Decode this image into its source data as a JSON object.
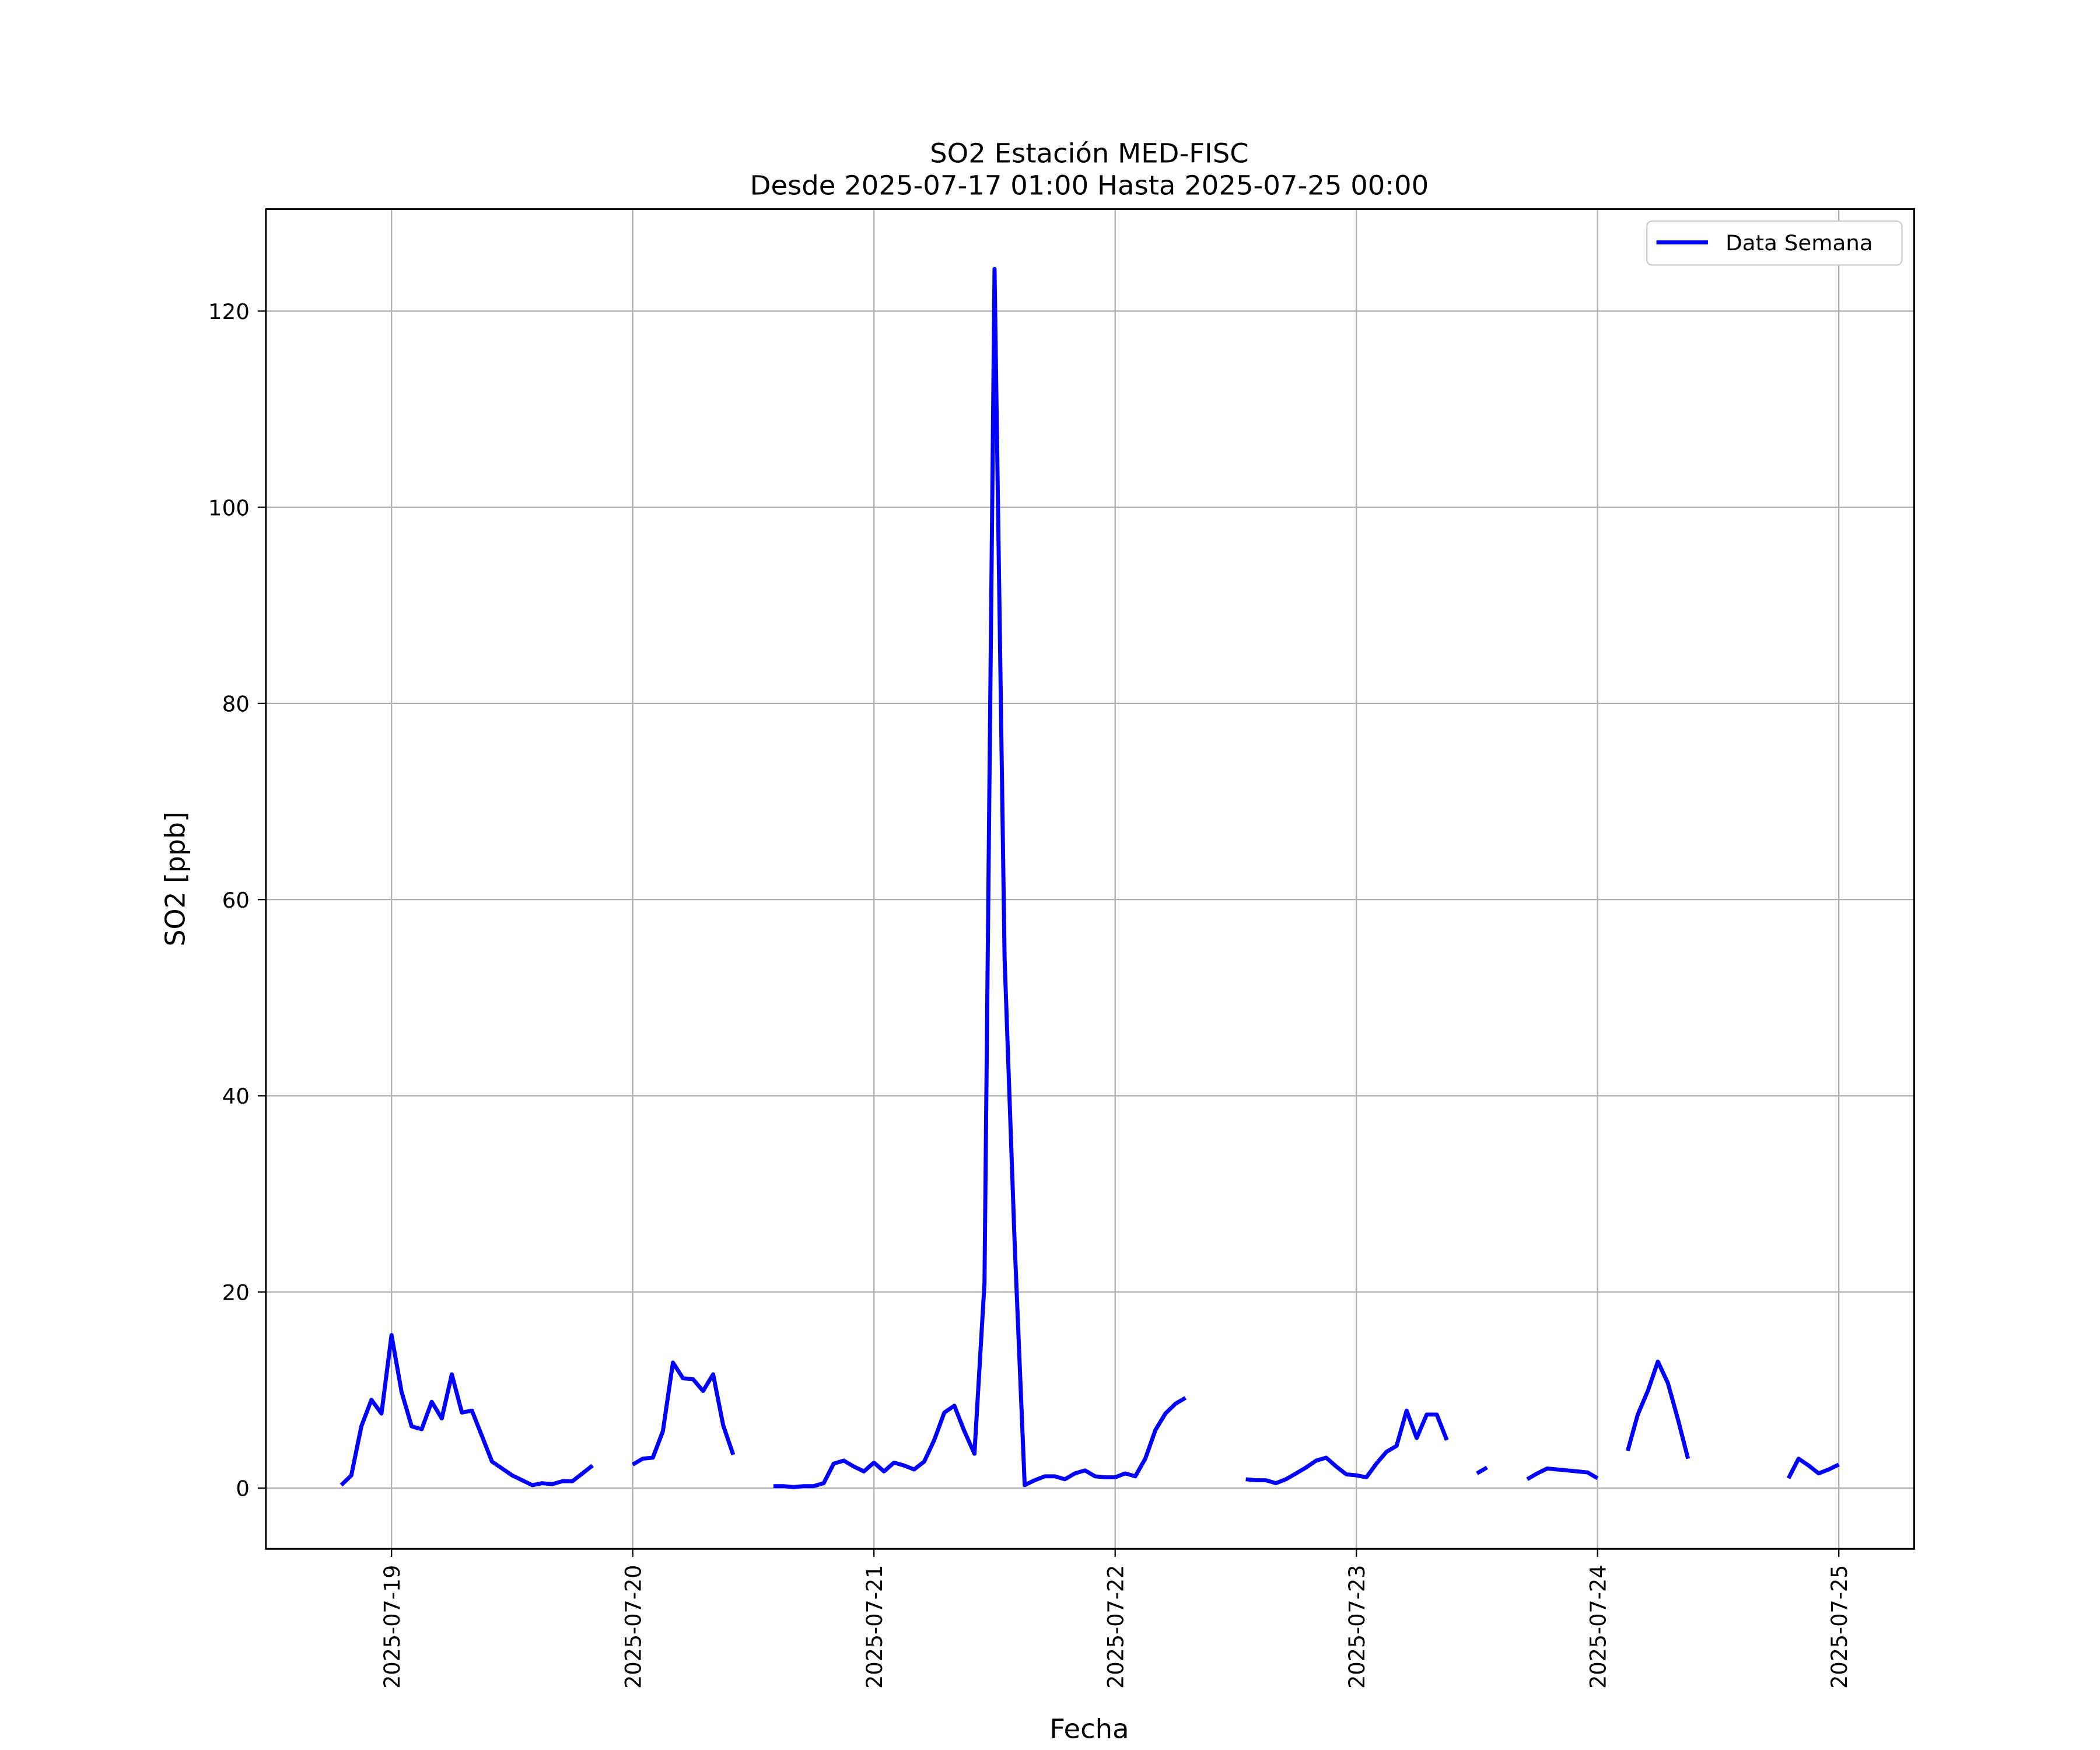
{
  "chart_data": {
    "type": "line",
    "title": "SO2 Estación MED-FISC",
    "subtitle": "Desde 2025-07-17 01:00 Hasta 2025-07-25 00:00",
    "xlabel": "Fecha",
    "ylabel": "SO2 [ppb]",
    "x": [
      "2025-07-18 19:00",
      "2025-07-18 20:00",
      "2025-07-18 21:00",
      "2025-07-18 22:00",
      "2025-07-18 23:00",
      "2025-07-19 00:00",
      "2025-07-19 01:00",
      "2025-07-19 02:00",
      "2025-07-19 03:00",
      "2025-07-19 04:00",
      "2025-07-19 05:00",
      "2025-07-19 06:00",
      "2025-07-19 07:00",
      "2025-07-19 08:00",
      "2025-07-19 09:00",
      "2025-07-19 10:00",
      "2025-07-19 11:00",
      "2025-07-19 12:00",
      "2025-07-19 13:00",
      "2025-07-19 14:00",
      "2025-07-19 15:00",
      "2025-07-19 16:00",
      "2025-07-19 17:00",
      "2025-07-19 18:00",
      "2025-07-19 19:00",
      "2025-07-19 20:00",
      "2025-07-19 21:00",
      "2025-07-19 22:00",
      "2025-07-19 23:00",
      "2025-07-20 00:00",
      "2025-07-20 01:00",
      "2025-07-20 02:00",
      "2025-07-20 03:00",
      "2025-07-20 04:00",
      "2025-07-20 05:00",
      "2025-07-20 06:00",
      "2025-07-20 07:00",
      "2025-07-20 08:00",
      "2025-07-20 09:00",
      "2025-07-20 10:00",
      "2025-07-20 11:00",
      "2025-07-20 12:00",
      "2025-07-20 13:00",
      "2025-07-20 14:00",
      "2025-07-20 15:00",
      "2025-07-20 16:00",
      "2025-07-20 17:00",
      "2025-07-20 18:00",
      "2025-07-20 19:00",
      "2025-07-20 20:00",
      "2025-07-20 21:00",
      "2025-07-20 22:00",
      "2025-07-20 23:00",
      "2025-07-21 00:00",
      "2025-07-21 01:00",
      "2025-07-21 02:00",
      "2025-07-21 03:00",
      "2025-07-21 04:00",
      "2025-07-21 05:00",
      "2025-07-21 06:00",
      "2025-07-21 07:00",
      "2025-07-21 08:00",
      "2025-07-21 09:00",
      "2025-07-21 10:00",
      "2025-07-21 11:00",
      "2025-07-21 12:00",
      "2025-07-21 13:00",
      "2025-07-21 14:00",
      "2025-07-21 15:00",
      "2025-07-21 16:00",
      "2025-07-21 17:00",
      "2025-07-21 18:00",
      "2025-07-21 19:00",
      "2025-07-21 20:00",
      "2025-07-21 21:00",
      "2025-07-21 22:00",
      "2025-07-21 23:00",
      "2025-07-22 00:00",
      "2025-07-22 01:00",
      "2025-07-22 02:00",
      "2025-07-22 03:00",
      "2025-07-22 04:00",
      "2025-07-22 05:00",
      "2025-07-22 06:00",
      "2025-07-22 07:00",
      "2025-07-22 08:00",
      "2025-07-22 09:00",
      "2025-07-22 10:00",
      "2025-07-22 11:00",
      "2025-07-22 12:00",
      "2025-07-22 13:00",
      "2025-07-22 14:00",
      "2025-07-22 15:00",
      "2025-07-22 16:00",
      "2025-07-22 17:00",
      "2025-07-22 18:00",
      "2025-07-22 19:00",
      "2025-07-22 20:00",
      "2025-07-22 21:00",
      "2025-07-22 22:00",
      "2025-07-22 23:00",
      "2025-07-23 00:00",
      "2025-07-23 01:00",
      "2025-07-23 02:00",
      "2025-07-23 03:00",
      "2025-07-23 04:00",
      "2025-07-23 05:00",
      "2025-07-23 06:00",
      "2025-07-23 07:00",
      "2025-07-23 08:00",
      "2025-07-23 09:00",
      "2025-07-23 10:00",
      "2025-07-23 11:00",
      "2025-07-23 12:00",
      "2025-07-23 13:00",
      "2025-07-23 14:00",
      "2025-07-23 15:00",
      "2025-07-23 16:00",
      "2025-07-23 17:00",
      "2025-07-23 18:00",
      "2025-07-23 19:00",
      "2025-07-23 20:00",
      "2025-07-23 21:00",
      "2025-07-23 22:00",
      "2025-07-23 23:00",
      "2025-07-24 00:00",
      "2025-07-24 01:00",
      "2025-07-24 02:00",
      "2025-07-24 03:00",
      "2025-07-24 04:00",
      "2025-07-24 05:00",
      "2025-07-24 06:00",
      "2025-07-24 07:00",
      "2025-07-24 08:00",
      "2025-07-24 09:00",
      "2025-07-24 10:00",
      "2025-07-24 11:00",
      "2025-07-24 12:00",
      "2025-07-24 13:00",
      "2025-07-24 14:00",
      "2025-07-24 15:00",
      "2025-07-24 16:00",
      "2025-07-24 17:00",
      "2025-07-24 18:00",
      "2025-07-24 19:00",
      "2025-07-24 20:00",
      "2025-07-24 21:00",
      "2025-07-24 22:00",
      "2025-07-24 23:00",
      "2025-07-25 00:00"
    ],
    "series": [
      {
        "name": "Data Semana",
        "color": "#0000ff",
        "values": [
          0.3,
          1.3,
          6.3,
          9.0,
          7.6,
          15.6,
          9.8,
          6.3,
          6.0,
          8.8,
          7.1,
          11.6,
          7.7,
          7.9,
          5.3,
          2.7,
          2.0,
          1.3,
          0.8,
          0.3,
          0.5,
          0.4,
          0.7,
          0.7,
          1.5,
          2.3,
          null,
          null,
          null,
          2.4,
          3.0,
          3.1,
          5.8,
          12.8,
          11.2,
          11.1,
          9.9,
          11.6,
          6.4,
          3.4,
          null,
          null,
          null,
          0.2,
          0.2,
          0.1,
          0.2,
          0.2,
          0.5,
          2.5,
          2.8,
          2.2,
          1.7,
          2.6,
          1.7,
          2.6,
          2.3,
          1.9,
          2.7,
          4.9,
          7.7,
          8.4,
          5.8,
          3.5,
          20.9,
          124.3,
          54,
          25,
          0.3,
          0.8,
          1.2,
          1.2,
          0.9,
          1.5,
          1.8,
          1.2,
          1.1,
          1.1,
          1.5,
          1.2,
          3.0,
          5.9,
          7.6,
          8.6,
          9.2,
          null,
          null,
          null,
          null,
          null,
          0.9,
          0.8,
          0.8,
          0.5,
          0.9,
          1.5,
          2.1,
          2.8,
          3.1,
          2.2,
          1.4,
          1.3,
          1.1,
          2.5,
          3.7,
          4.3,
          7.9,
          5.1,
          7.5,
          7.5,
          4.9,
          null,
          null,
          1.5,
          2.1,
          null,
          null,
          null,
          0.9,
          1.5,
          2.0,
          1.9,
          1.8,
          1.7,
          1.6,
          1.0,
          null,
          null,
          3.8,
          7.5,
          9.9,
          12.9,
          10.7,
          7.0,
          3.0,
          null,
          null,
          null,
          null,
          null,
          null,
          null,
          null,
          null,
          1.0,
          3.0,
          2.3,
          1.5,
          1.9,
          2.4
        ]
      }
    ],
    "xlim": [
      "2025-07-18 11:30",
      "2025-07-25 07:30"
    ],
    "xticks": [
      "2025-07-19",
      "2025-07-20",
      "2025-07-21",
      "2025-07-22",
      "2025-07-23",
      "2025-07-24",
      "2025-07-25"
    ],
    "ylim": [
      -6.2,
      130.4
    ],
    "yticks": [
      0,
      20,
      40,
      60,
      80,
      100,
      120
    ],
    "grid": true,
    "legend": "upper right"
  }
}
